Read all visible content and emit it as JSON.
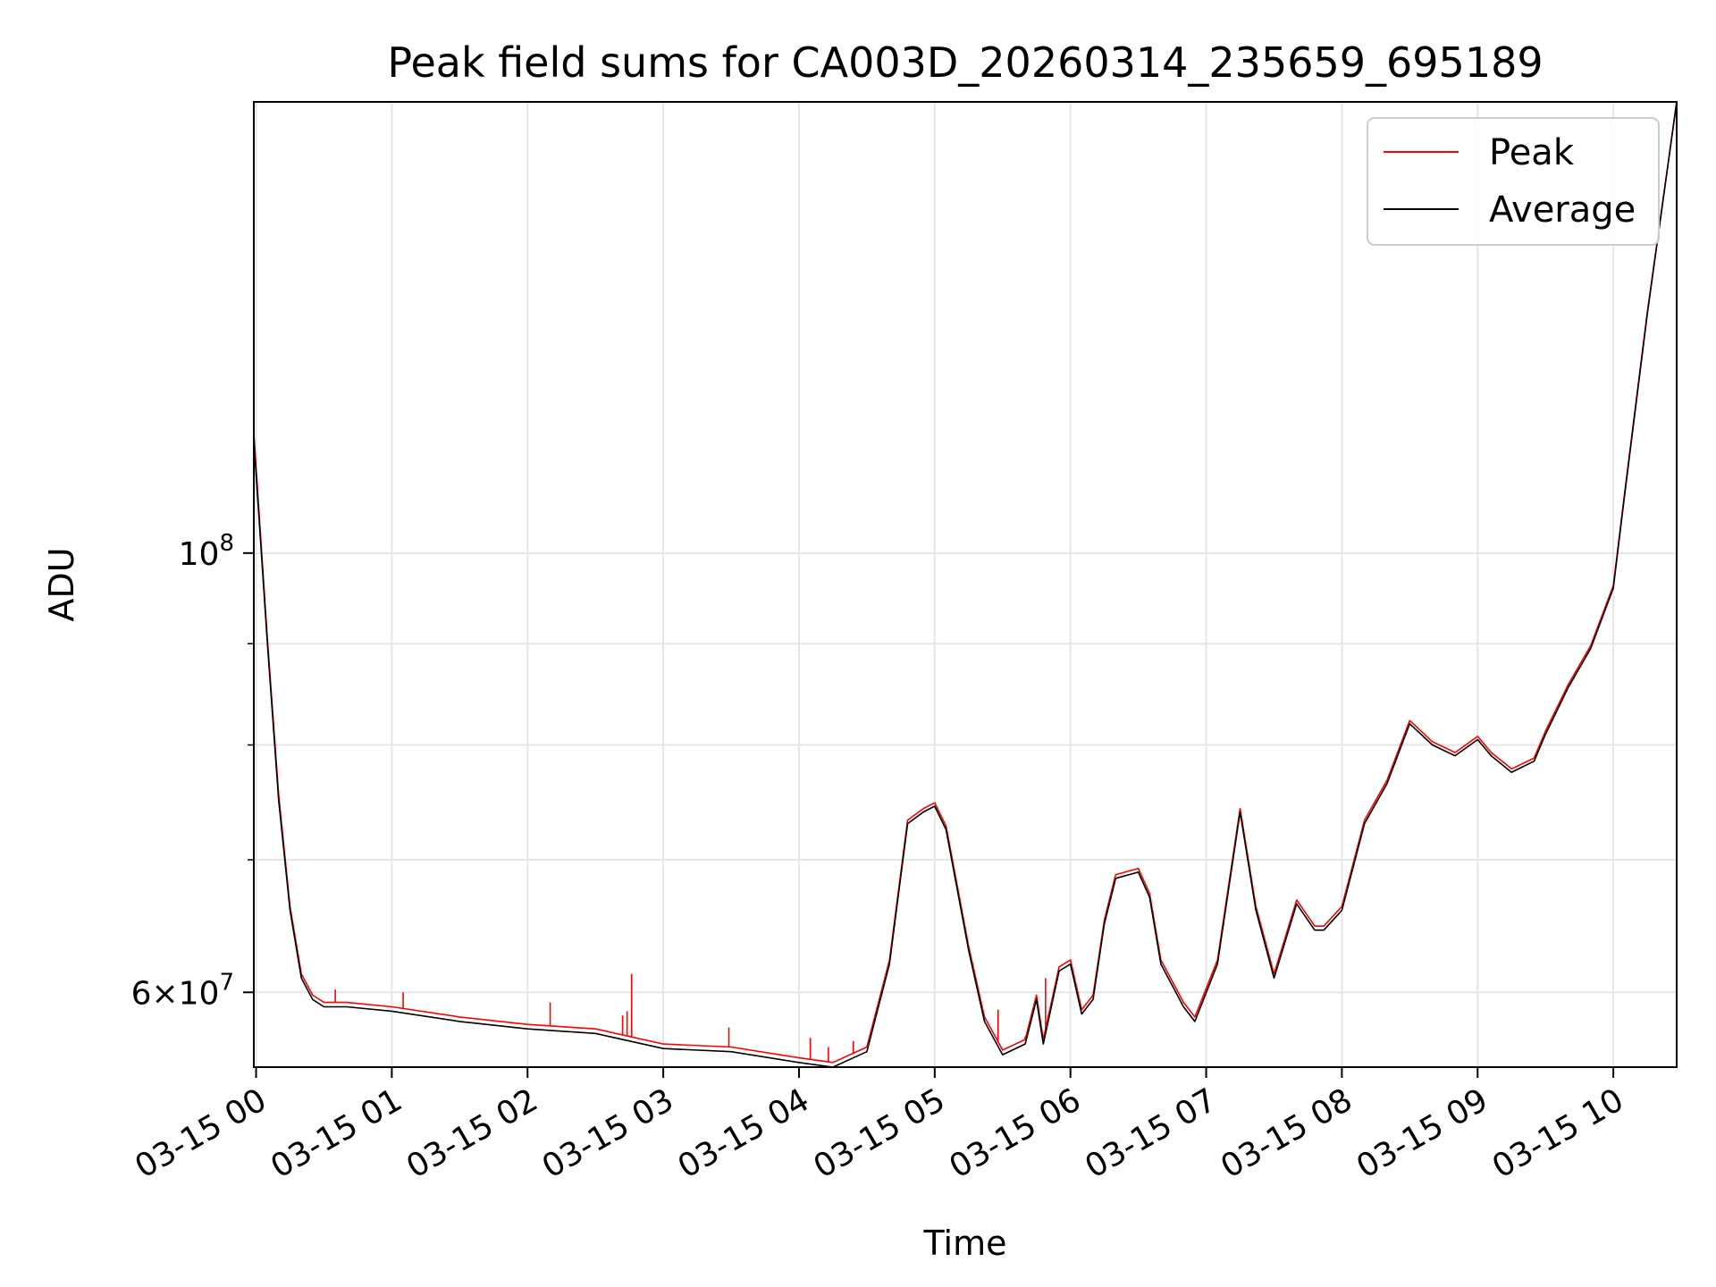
{
  "chart_data": {
    "type": "line",
    "title": "Peak field sums for CA003D_20260314_235659_695189",
    "xlabel": "Time",
    "ylabel": "ADU",
    "y_scale": "log",
    "xlim": [
      "03-14 23:59",
      "03-15 10:28"
    ],
    "ylim": [
      55000000,
      169000000
    ],
    "x_ticks": [
      "03-15 00",
      "03-15 01",
      "03-15 02",
      "03-15 03",
      "03-15 04",
      "03-15 05",
      "03-15 06",
      "03-15 07",
      "03-15 08",
      "03-15 09",
      "03-15 10"
    ],
    "y_tick_labels": [
      {
        "value": 100000000,
        "mantissa": "",
        "base": "10",
        "exp": "8"
      },
      {
        "value": 60000000,
        "mantissa": "6",
        "base": "10",
        "exp": "7"
      }
    ],
    "y_minor_ticks": [
      70000000,
      80000000,
      90000000
    ],
    "grid": true,
    "legend_position": "top-right",
    "colors": {
      "peak": "#ff0000",
      "average": "#000000",
      "grid": "#e6e6e6"
    },
    "series": [
      {
        "name": "Average",
        "key": "average",
        "x": [
          "03-14 23:59",
          "03-15 00:05",
          "03-15 00:10",
          "03-15 00:15",
          "03-15 00:20",
          "03-15 00:25",
          "03-15 00:30",
          "03-15 00:40",
          "03-15 01:00",
          "03-15 01:30",
          "03-15 02:00",
          "03-15 02:30",
          "03-15 03:00",
          "03-15 03:30",
          "03-15 04:00",
          "03-15 04:15",
          "03-15 04:30",
          "03-15 04:40",
          "03-15 04:48",
          "03-15 04:55",
          "03-15 05:00",
          "03-15 05:05",
          "03-15 05:15",
          "03-15 05:22",
          "03-15 05:30",
          "03-15 05:40",
          "03-15 05:45",
          "03-15 05:48",
          "03-15 05:55",
          "03-15 06:00",
          "03-15 06:05",
          "03-15 06:10",
          "03-15 06:15",
          "03-15 06:20",
          "03-15 06:30",
          "03-15 06:35",
          "03-15 06:40",
          "03-15 06:50",
          "03-15 06:55",
          "03-15 07:05",
          "03-15 07:15",
          "03-15 07:22",
          "03-15 07:30",
          "03-15 07:40",
          "03-15 07:48",
          "03-15 07:52",
          "03-15 08:00",
          "03-15 08:10",
          "03-15 08:20",
          "03-15 08:30",
          "03-15 08:40",
          "03-15 08:50",
          "03-15 09:00",
          "03-15 09:06",
          "03-15 09:15",
          "03-15 09:25",
          "03-15 09:30",
          "03-15 09:40",
          "03-15 09:50",
          "03-15 10:00",
          "03-15 10:05",
          "03-15 10:15",
          "03-15 10:28"
        ],
        "values": [
          114000000,
          90000000,
          75000000,
          66000000,
          61000000,
          59500000,
          59000000,
          59000000,
          58700000,
          58000000,
          57500000,
          57200000,
          56200000,
          56000000,
          55300000,
          55000000,
          56000000,
          62000000,
          73000000,
          74000000,
          74500000,
          72500000,
          63000000,
          58000000,
          55800000,
          56500000,
          59500000,
          56500000,
          61500000,
          62000000,
          58500000,
          59500000,
          65000000,
          68500000,
          69000000,
          67000000,
          62000000,
          59000000,
          58000000,
          62000000,
          74000000,
          66000000,
          61000000,
          66500000,
          64500000,
          64500000,
          66000000,
          73000000,
          76500000,
          82000000,
          80000000,
          79000000,
          80500000,
          79000000,
          77500000,
          78500000,
          81000000,
          85500000,
          89500000,
          96000000,
          107000000,
          132000000,
          169000000
        ]
      },
      {
        "name": "Peak",
        "key": "peak",
        "x": [
          "03-14 23:59",
          "03-15 00:05",
          "03-15 00:10",
          "03-15 00:15",
          "03-15 00:20",
          "03-15 00:25",
          "03-15 00:30",
          "03-15 00:40",
          "03-15 01:00",
          "03-15 01:30",
          "03-15 02:00",
          "03-15 02:30",
          "03-15 03:00",
          "03-15 03:30",
          "03-15 04:00",
          "03-15 04:15",
          "03-15 04:30",
          "03-15 04:40",
          "03-15 04:48",
          "03-15 04:55",
          "03-15 05:00",
          "03-15 05:05",
          "03-15 05:15",
          "03-15 05:22",
          "03-15 05:30",
          "03-15 05:40",
          "03-15 05:45",
          "03-15 05:48",
          "03-15 05:55",
          "03-15 06:00",
          "03-15 06:05",
          "03-15 06:10",
          "03-15 06:15",
          "03-15 06:20",
          "03-15 06:30",
          "03-15 06:35",
          "03-15 06:40",
          "03-15 06:50",
          "03-15 06:55",
          "03-15 07:05",
          "03-15 07:15",
          "03-15 07:22",
          "03-15 07:30",
          "03-15 07:40",
          "03-15 07:48",
          "03-15 07:52",
          "03-15 08:00",
          "03-15 08:10",
          "03-15 08:20",
          "03-15 08:30",
          "03-15 08:40",
          "03-15 08:50",
          "03-15 09:00",
          "03-15 09:06",
          "03-15 09:15",
          "03-15 09:25",
          "03-15 09:30",
          "03-15 09:40",
          "03-15 09:50",
          "03-15 10:00",
          "03-15 10:05",
          "03-15 10:15",
          "03-15 10:28"
        ],
        "values": [
          115000000,
          90500000,
          75500000,
          66300000,
          61300000,
          59800000,
          59300000,
          59300000,
          59000000,
          58300000,
          57800000,
          57500000,
          56500000,
          56300000,
          55600000,
          55300000,
          56300000,
          62300000,
          73300000,
          74300000,
          74800000,
          72800000,
          63300000,
          58300000,
          56100000,
          56800000,
          59800000,
          56800000,
          61800000,
          62300000,
          58800000,
          59800000,
          65300000,
          68800000,
          69300000,
          67300000,
          62300000,
          59300000,
          58300000,
          62300000,
          74300000,
          66300000,
          61300000,
          66800000,
          64800000,
          64800000,
          66300000,
          73300000,
          76800000,
          82300000,
          80300000,
          79300000,
          80800000,
          79300000,
          77800000,
          78800000,
          81300000,
          85800000,
          89800000,
          96300000,
          107300000,
          132300000,
          169000000
        ],
        "spikes": [
          {
            "x": "03-15 00:35",
            "value": 60200000
          },
          {
            "x": "03-15 01:05",
            "value": 60000000
          },
          {
            "x": "03-15 02:10",
            "value": 59300000
          },
          {
            "x": "03-15 02:42",
            "value": 58400000
          },
          {
            "x": "03-15 02:44",
            "value": 58700000
          },
          {
            "x": "03-15 02:46",
            "value": 61300000
          },
          {
            "x": "03-15 03:29",
            "value": 57600000
          },
          {
            "x": "03-15 04:05",
            "value": 56900000
          },
          {
            "x": "03-15 04:13",
            "value": 56300000
          },
          {
            "x": "03-15 04:24",
            "value": 56700000
          },
          {
            "x": "03-15 05:28",
            "value": 58800000
          },
          {
            "x": "03-15 05:40",
            "value": 57000000
          },
          {
            "x": "03-15 05:49",
            "value": 61000000
          }
        ]
      }
    ]
  }
}
